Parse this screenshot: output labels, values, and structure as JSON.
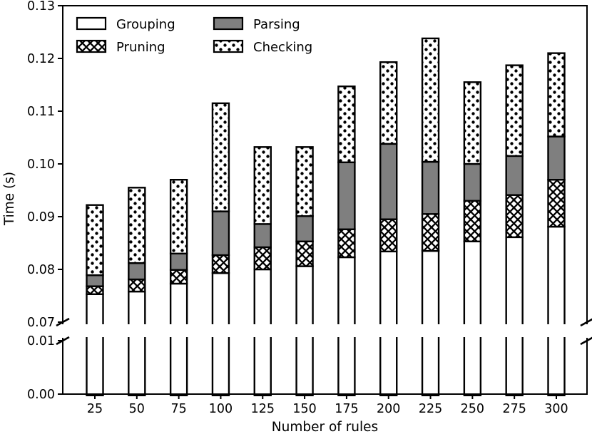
{
  "chart_data": {
    "type": "bar",
    "stacked": true,
    "title": "",
    "xlabel": "Number of rules",
    "ylabel": "Time (s)",
    "categories": [
      25,
      50,
      75,
      100,
      125,
      150,
      175,
      200,
      225,
      250,
      275,
      300
    ],
    "series": [
      {
        "name": "Grouping",
        "style": "white",
        "values": [
          0.0753,
          0.0758,
          0.0773,
          0.0793,
          0.08,
          0.0806,
          0.0823,
          0.0834,
          0.0835,
          0.0853,
          0.0861,
          0.0881
        ]
      },
      {
        "name": "Pruning",
        "style": "crosshatch",
        "values": [
          0.0015,
          0.0023,
          0.0026,
          0.0034,
          0.0042,
          0.0047,
          0.0053,
          0.0061,
          0.007,
          0.0077,
          0.008,
          0.0089
        ]
      },
      {
        "name": "Parsing",
        "style": "gray",
        "values": [
          0.0021,
          0.0031,
          0.0031,
          0.0083,
          0.0044,
          0.0048,
          0.0127,
          0.0143,
          0.0099,
          0.007,
          0.0074,
          0.0082
        ]
      },
      {
        "name": "Checking",
        "style": "dots",
        "values": [
          0.0133,
          0.0143,
          0.014,
          0.0205,
          0.0146,
          0.0131,
          0.0144,
          0.0155,
          0.0234,
          0.0155,
          0.0172,
          0.0158
        ]
      }
    ],
    "stack_totals": [
      0.0922,
      0.0955,
      0.097,
      0.1115,
      0.1032,
      0.1032,
      0.1147,
      0.1193,
      0.1238,
      0.1155,
      0.1187,
      0.121
    ],
    "axis": {
      "y_break": {
        "lower_range": [
          0.0,
          0.01
        ],
        "upper_range": [
          0.07,
          0.13
        ]
      },
      "yticks_upper": [
        "0.07",
        "0.08",
        "0.09",
        "0.10",
        "0.11",
        "0.12",
        "0.13"
      ],
      "yticks_lower": [
        "0.00",
        "0.01"
      ],
      "xticks": [
        "25",
        "50",
        "75",
        "100",
        "125",
        "150",
        "175",
        "200",
        "225",
        "250",
        "275",
        "300"
      ],
      "grid": false
    },
    "legend": {
      "position": "upper-left",
      "columns": 2,
      "order": [
        "Grouping",
        "Pruning",
        "Parsing",
        "Checking"
      ]
    },
    "colors": {
      "bar_gray": "#7f7f7f",
      "bar_outline": "#000000",
      "background": "#ffffff",
      "text": "#000000"
    }
  }
}
